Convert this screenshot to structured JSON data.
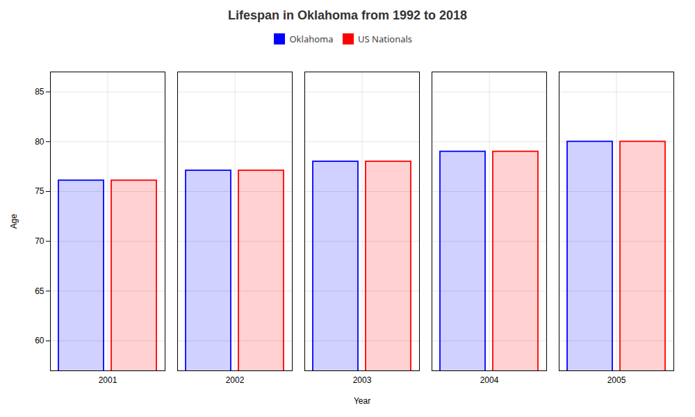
{
  "chart_data": {
    "type": "bar",
    "title": "Lifespan in Oklahoma from 1992 to 2018",
    "xlabel": "Year",
    "ylabel": "Age",
    "categories": [
      "2001",
      "2002",
      "2003",
      "2004",
      "2005"
    ],
    "series": [
      {
        "name": "Oklahoma",
        "color": "#0000ff",
        "values": [
          76.1,
          77.1,
          78.0,
          79.0,
          80.0
        ]
      },
      {
        "name": "US Nationals",
        "color": "#ff0000",
        "values": [
          76.1,
          77.1,
          78.0,
          79.0,
          80.0
        ]
      }
    ],
    "ylim": [
      57,
      87
    ],
    "yticks": [
      60,
      65,
      70,
      75,
      80,
      85
    ],
    "grid": true,
    "legend": "upper center"
  }
}
